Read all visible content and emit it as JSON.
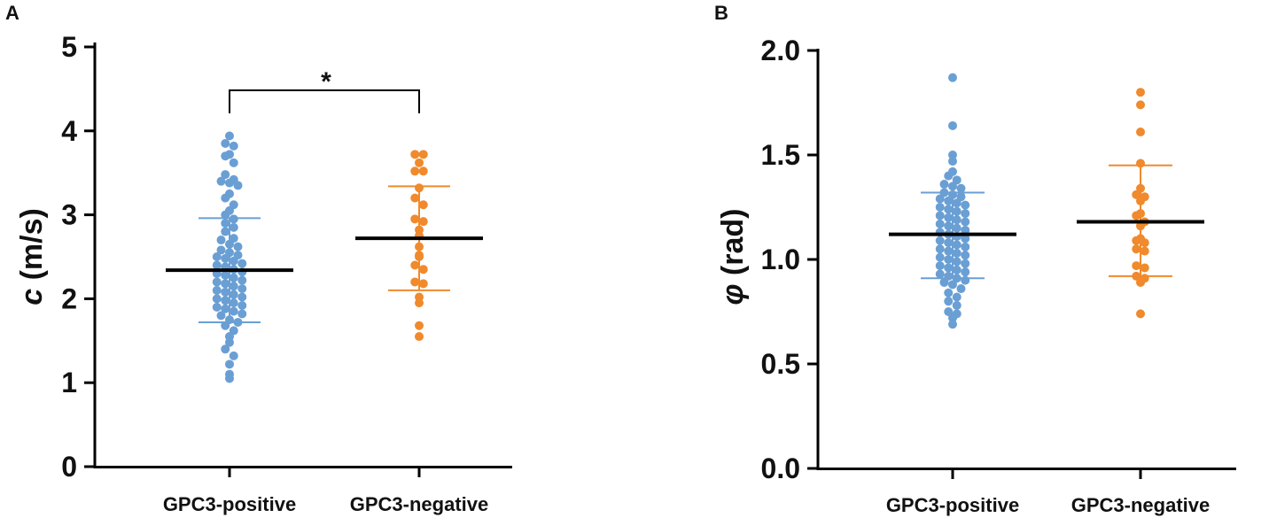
{
  "chart_data": [
    {
      "panel": "A",
      "type": "scatter",
      "chart_kind": "dot plot with mean and SD",
      "ylabel_symbol": "c",
      "ylabel_unit": "(m/s)",
      "ylim": [
        0,
        5
      ],
      "yticks": [
        0,
        1,
        2,
        3,
        4,
        5
      ],
      "tick_labels": [
        "0",
        "1",
        "2",
        "3",
        "4",
        "5"
      ],
      "categories": [
        "GPC3-positive",
        "GPC3-negative"
      ],
      "significance": {
        "between": [
          "GPC3-positive",
          "GPC3-negative"
        ],
        "label": "*"
      },
      "series": [
        {
          "name": "GPC3-positive",
          "color": "#6a9fd4",
          "mean": 2.34,
          "sd_low": 1.72,
          "sd_high": 2.96,
          "values": [
            3.94,
            3.85,
            3.82,
            3.72,
            3.7,
            3.62,
            3.48,
            3.42,
            3.4,
            3.38,
            3.35,
            3.25,
            3.2,
            3.12,
            3.05,
            3.0,
            2.95,
            2.9,
            2.85,
            2.8,
            2.72,
            2.7,
            2.65,
            2.62,
            2.58,
            2.55,
            2.52,
            2.5,
            2.48,
            2.45,
            2.42,
            2.4,
            2.38,
            2.35,
            2.32,
            2.3,
            2.28,
            2.25,
            2.22,
            2.2,
            2.18,
            2.15,
            2.12,
            2.1,
            2.08,
            2.05,
            2.02,
            2.0,
            1.98,
            1.95,
            1.92,
            1.9,
            1.88,
            1.85,
            1.82,
            1.8,
            1.75,
            1.72,
            1.68,
            1.62,
            1.55,
            1.48,
            1.4,
            1.32,
            1.22,
            1.1,
            1.05
          ]
        },
        {
          "name": "GPC3-negative",
          "color": "#f08a2c",
          "mean": 2.72,
          "sd_low": 2.1,
          "sd_high": 3.34,
          "values": [
            3.72,
            3.72,
            3.62,
            3.52,
            3.52,
            3.32,
            3.2,
            3.12,
            2.95,
            2.92,
            2.82,
            2.75,
            2.62,
            2.52,
            2.5,
            2.4,
            2.35,
            2.2,
            2.18,
            2.02,
            1.95,
            1.68,
            1.55
          ]
        }
      ]
    },
    {
      "panel": "B",
      "type": "scatter",
      "chart_kind": "dot plot with mean and SD",
      "ylabel_symbol": "φ",
      "ylabel_unit": "(rad)",
      "ylim": [
        0,
        2
      ],
      "yticks": [
        0,
        0.5,
        1,
        1.5,
        2
      ],
      "tick_labels": [
        "0.0",
        "0.5",
        "1.0",
        "1.5",
        "2.0"
      ],
      "categories": [
        "GPC3-positive",
        "GPC3-negative"
      ],
      "series": [
        {
          "name": "GPC3-positive",
          "color": "#6a9fd4",
          "mean": 1.12,
          "sd_low": 0.91,
          "sd_high": 1.32,
          "values": [
            1.87,
            1.64,
            1.5,
            1.47,
            1.42,
            1.4,
            1.38,
            1.36,
            1.35,
            1.34,
            1.32,
            1.31,
            1.3,
            1.29,
            1.28,
            1.27,
            1.26,
            1.25,
            1.24,
            1.23,
            1.22,
            1.21,
            1.2,
            1.19,
            1.18,
            1.17,
            1.16,
            1.15,
            1.14,
            1.13,
            1.12,
            1.11,
            1.1,
            1.09,
            1.08,
            1.07,
            1.06,
            1.05,
            1.04,
            1.03,
            1.02,
            1.01,
            1.0,
            0.99,
            0.98,
            0.97,
            0.96,
            0.95,
            0.94,
            0.93,
            0.92,
            0.91,
            0.9,
            0.89,
            0.88,
            0.86,
            0.84,
            0.82,
            0.8,
            0.78,
            0.75,
            0.74,
            0.72,
            0.69
          ]
        },
        {
          "name": "GPC3-negative",
          "color": "#f08a2c",
          "mean": 1.18,
          "sd_low": 0.92,
          "sd_high": 1.45,
          "values": [
            1.8,
            1.74,
            1.61,
            1.46,
            1.34,
            1.31,
            1.3,
            1.28,
            1.22,
            1.21,
            1.18,
            1.16,
            1.1,
            1.09,
            1.08,
            1.05,
            1.04,
            0.97,
            0.96,
            0.92,
            0.91,
            0.89,
            0.74
          ]
        }
      ]
    }
  ]
}
